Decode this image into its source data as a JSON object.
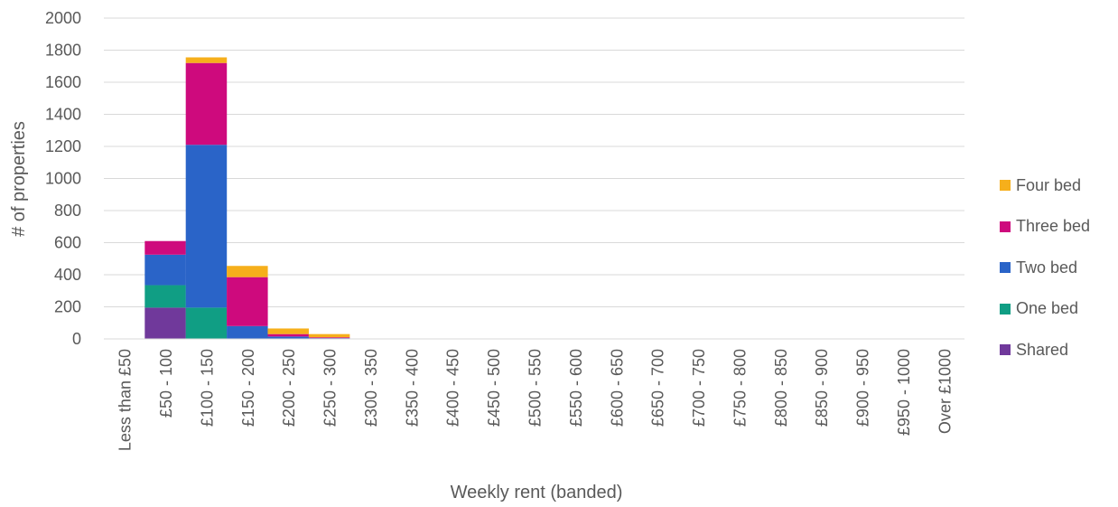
{
  "chart_data": {
    "type": "bar",
    "stacked": true,
    "xlabel": "Weekly rent (banded)",
    "ylabel": "# of properties",
    "ylim": [
      0,
      2000
    ],
    "yticks": [
      0,
      200,
      400,
      600,
      800,
      1000,
      1200,
      1400,
      1600,
      1800,
      2000
    ],
    "grid": true,
    "legend_position": "right",
    "categories": [
      "Less than £50",
      "£50 - 100",
      "£100 - 150",
      "£150 - 200",
      "£200 - 250",
      "£250 - 300",
      "£300 - 350",
      "£350 - 400",
      "£400 - 450",
      "£450 - 500",
      "£500 - 550",
      "£550 - 600",
      "£600 - 650",
      "£650 - 700",
      "£700 - 750",
      "£750 - 800",
      "£800 - 850",
      "£850 - 900",
      "£900 - 950",
      "£950 - 1000",
      "Over £1000"
    ],
    "series": [
      {
        "name": "Shared",
        "color": "#70399B",
        "values": [
          0,
          195,
          0,
          0,
          0,
          0,
          0,
          0,
          0,
          0,
          0,
          0,
          0,
          0,
          0,
          0,
          0,
          0,
          0,
          0,
          0
        ]
      },
      {
        "name": "One bed",
        "color": "#109E84",
        "values": [
          0,
          140,
          195,
          0,
          0,
          0,
          0,
          0,
          0,
          0,
          0,
          0,
          0,
          0,
          0,
          0,
          0,
          0,
          0,
          0,
          0
        ]
      },
      {
        "name": "Two bed",
        "color": "#2A64C8",
        "values": [
          0,
          190,
          1015,
          80,
          15,
          5,
          0,
          0,
          0,
          0,
          0,
          0,
          0,
          0,
          0,
          0,
          0,
          0,
          0,
          0,
          0
        ]
      },
      {
        "name": "Three bed",
        "color": "#CE0A7D",
        "values": [
          0,
          85,
          510,
          305,
          15,
          5,
          0,
          0,
          0,
          0,
          0,
          0,
          0,
          0,
          0,
          0,
          0,
          0,
          0,
          0,
          0
        ]
      },
      {
        "name": "Four bed",
        "color": "#F6AF1B",
        "values": [
          0,
          0,
          35,
          70,
          35,
          20,
          0,
          0,
          0,
          0,
          0,
          0,
          0,
          0,
          0,
          0,
          0,
          0,
          0,
          0,
          0
        ]
      }
    ]
  }
}
